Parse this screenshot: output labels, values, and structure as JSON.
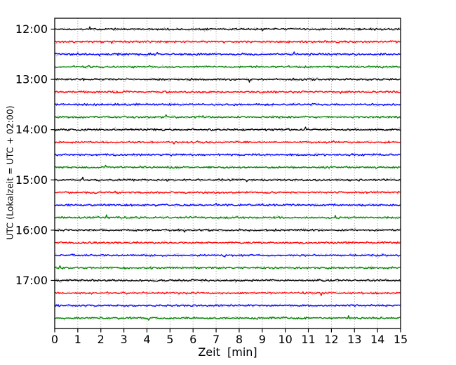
{
  "window": {
    "background": "#ffffff"
  },
  "chart_data": {
    "type": "line",
    "subtype": "helicorder-dayplot",
    "title": "",
    "xlabel": "Zeit  [min]",
    "ylabel": "UTC (Lokalzeit = UTC + 02:00)",
    "xlim": [
      0,
      15
    ],
    "minutes_per_row": 15,
    "x_tick_labels": [
      "0",
      "1",
      "2",
      "3",
      "4",
      "5",
      "6",
      "7",
      "8",
      "9",
      "10",
      "11",
      "12",
      "13",
      "14",
      "15"
    ],
    "y_tick_labels": [
      "12:00",
      "13:00",
      "14:00",
      "15:00",
      "16:00",
      "17:00"
    ],
    "grid": {
      "vertical": "dotted",
      "horizontal": false,
      "color": "#8c8c8c"
    },
    "legend": "none",
    "spine_color": "#000000",
    "tick_color": "#000000",
    "color_cycle": [
      "#000000",
      "#ff0000",
      "#0000ff",
      "#008000"
    ],
    "trace_character": "stationary low-amplitude background noise, no events",
    "traces": [
      {
        "start_time": "12:00",
        "color": "#000000"
      },
      {
        "start_time": "12:15",
        "color": "#ff0000"
      },
      {
        "start_time": "12:30",
        "color": "#0000ff"
      },
      {
        "start_time": "12:45",
        "color": "#008000"
      },
      {
        "start_time": "13:00",
        "color": "#000000"
      },
      {
        "start_time": "13:15",
        "color": "#ff0000"
      },
      {
        "start_time": "13:30",
        "color": "#0000ff"
      },
      {
        "start_time": "13:45",
        "color": "#008000"
      },
      {
        "start_time": "14:00",
        "color": "#000000"
      },
      {
        "start_time": "14:15",
        "color": "#ff0000"
      },
      {
        "start_time": "14:30",
        "color": "#0000ff"
      },
      {
        "start_time": "14:45",
        "color": "#008000"
      },
      {
        "start_time": "15:00",
        "color": "#000000"
      },
      {
        "start_time": "15:15",
        "color": "#ff0000"
      },
      {
        "start_time": "15:30",
        "color": "#0000ff"
      },
      {
        "start_time": "15:45",
        "color": "#008000"
      },
      {
        "start_time": "16:00",
        "color": "#000000"
      },
      {
        "start_time": "16:15",
        "color": "#ff0000"
      },
      {
        "start_time": "16:30",
        "color": "#0000ff"
      },
      {
        "start_time": "16:45",
        "color": "#008000"
      },
      {
        "start_time": "17:00",
        "color": "#000000"
      },
      {
        "start_time": "17:15",
        "color": "#ff0000"
      },
      {
        "start_time": "17:30",
        "color": "#0000ff"
      },
      {
        "start_time": "17:45",
        "color": "#008000"
      }
    ]
  }
}
